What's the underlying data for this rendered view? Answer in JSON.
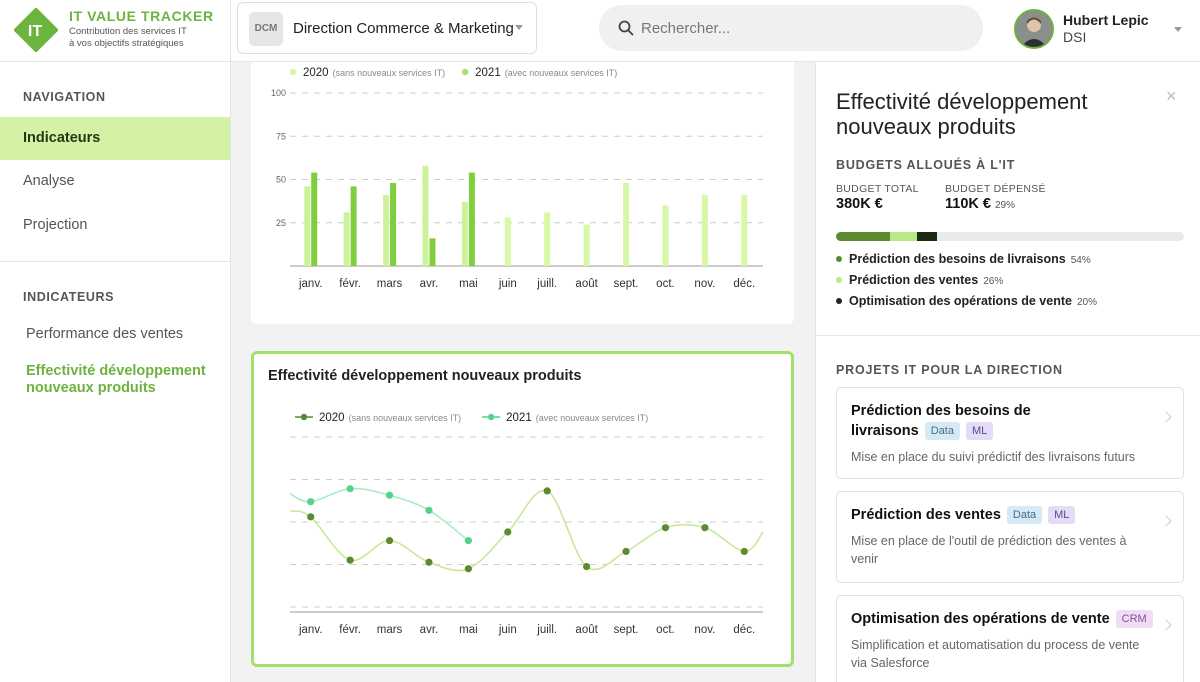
{
  "app": {
    "logo_text": "IT",
    "title": "IT VALUE TRACKER",
    "subtitle_line1": "Contribution des services IT",
    "subtitle_line2": "à vos objectifs stratégiques",
    "accent": "#6db33f"
  },
  "direction": {
    "badge": "DCM",
    "label": "Direction Commerce & Marketing"
  },
  "search": {
    "placeholder": "Rechercher...",
    "value": ""
  },
  "user": {
    "name": "Hubert Lepic",
    "role": "DSI"
  },
  "sidebar": {
    "nav_title": "NAVIGATION",
    "nav_items": [
      {
        "label": "Indicateurs",
        "active": true
      },
      {
        "label": "Analyse",
        "active": false
      },
      {
        "label": "Projection",
        "active": false
      }
    ],
    "ind_title": "INDICATEURS",
    "ind_items": [
      {
        "label": "Performance des ventes",
        "active": false
      },
      {
        "label": "Effectivité développement nouveaux produits",
        "active": true
      }
    ]
  },
  "chart_data": [
    {
      "type": "bar",
      "title": "",
      "categories": [
        "janv.",
        "févr.",
        "mars",
        "avr.",
        "mai",
        "juin",
        "juill.",
        "août",
        "sept.",
        "oct.",
        "nov.",
        "déc."
      ],
      "series": [
        {
          "name": "2020",
          "name_note": "(sans nouveaux services IT)",
          "color": "#a9df72",
          "values": [
            46,
            31,
            41,
            58,
            37,
            null,
            null,
            null,
            null,
            null,
            null,
            null
          ]
        },
        {
          "name": "2021",
          "name_note": "(avec nouveaux services IT)",
          "color": "#d9f8a6",
          "values": [
            54,
            46,
            48,
            16,
            54,
            28,
            31,
            24,
            48,
            35,
            41,
            41
          ]
        }
      ],
      "second_series_color_partial": "#7fcf3c",
      "ylim": [
        0,
        100
      ],
      "yticks": [
        "100",
        "75",
        "50",
        "25"
      ],
      "grid": true,
      "legend": "top-left"
    },
    {
      "type": "line",
      "title": "Effectivité développement nouveaux produits",
      "categories": [
        "janv.",
        "févr.",
        "mars",
        "avr.",
        "mai",
        "juin",
        "juill.",
        "août",
        "sept.",
        "oct.",
        "nov.",
        "déc."
      ],
      "series": [
        {
          "name": "2020",
          "name_note": "(sans nouveaux services IT)",
          "color": "#5c8a2e",
          "values": [
            44,
            24,
            33,
            23,
            20,
            37,
            56,
            21,
            28,
            39,
            39,
            28
          ]
        },
        {
          "name": "2021",
          "name_note": "(avec nouveaux services IT)",
          "color": "#55d28c",
          "values": [
            51,
            57,
            54,
            47,
            33,
            null,
            null,
            null,
            null,
            null,
            null,
            null
          ]
        }
      ],
      "ylim": [
        0,
        80
      ],
      "grid": true,
      "legend": "top-left"
    }
  ],
  "panel": {
    "title": "Effectivité développement nouveaux produits",
    "close_label": "×",
    "budget_title": "BUDGETS ALLOUÉS À L'IT",
    "budget_total_label": "BUDGET TOTAL",
    "budget_total_value": "380K €",
    "budget_spent_label": "BUDGET DÉPENSÉ",
    "budget_spent_value": "110K €",
    "budget_spent_pct": "29%",
    "budget_spent_fraction": 0.29,
    "breakdown": [
      {
        "label": "Prédiction des besoins de livraisons",
        "pct": "54%",
        "share": 0.54,
        "color": "#5c8a2e"
      },
      {
        "label": "Prédiction des ventes",
        "pct": "26%",
        "share": 0.26,
        "color": "#b9e986"
      },
      {
        "label": "Optimisation des opérations de vente",
        "pct": "20%",
        "share": 0.2,
        "color": "#1c2a14"
      }
    ],
    "projects_title": "PROJETS IT POUR LA DIRECTION",
    "projects": [
      {
        "title_line1": "Prédiction des besoins de",
        "title_line2": "livraisons",
        "tags": [
          "Data",
          "ML"
        ],
        "desc": "Mise en place du suivi prédictif des livraisons futurs"
      },
      {
        "title": "Prédiction des ventes",
        "tags": [
          "Data",
          "ML"
        ],
        "desc": "Mise en place de l'outil de prédiction des ventes à venir"
      },
      {
        "title": "Optimisation des opérations de vente",
        "tags": [
          "CRM"
        ],
        "desc": "Simplification et automatisation du process de vente via Salesforce"
      }
    ]
  }
}
